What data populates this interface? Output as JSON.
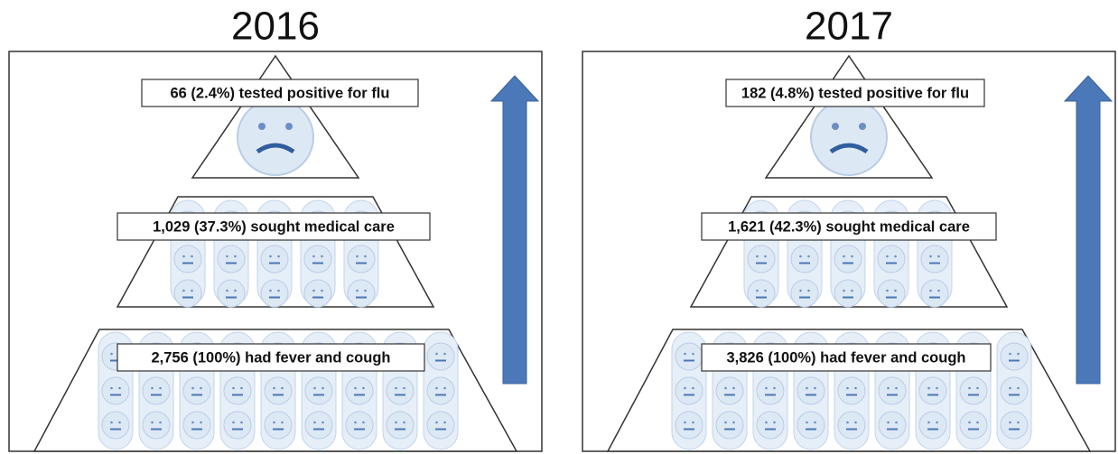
{
  "panels": [
    {
      "title": "2016",
      "tiers": [
        "66 (2.4%) tested positive for flu",
        "1,029 (37.3%) sought medical care",
        "2,756 (100%) had fever and cough"
      ]
    },
    {
      "title": "2017",
      "tiers": [
        "182 (4.8%) tested positive for flu",
        "1,621 (42.3%) sought medical care",
        "3,826 (100%) had fever and cough"
      ]
    }
  ]
}
